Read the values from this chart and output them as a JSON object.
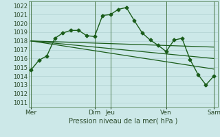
{
  "xlabel": "Pression niveau de la mer( hPa )",
  "bg_color": "#cce8e8",
  "grid_color": "#aacccc",
  "line_color": "#1a5c1a",
  "ylim": [
    1010.5,
    1022.5
  ],
  "yticks": [
    1011,
    1012,
    1013,
    1014,
    1015,
    1016,
    1017,
    1018,
    1019,
    1020,
    1021,
    1022
  ],
  "x_day_labels": [
    "Mer",
    "Dim",
    "Jeu",
    "Ven",
    "Sam"
  ],
  "x_day_positions": [
    0,
    8,
    10,
    17,
    23
  ],
  "xlim": [
    -0.3,
    23.5
  ],
  "main_series": {
    "x": [
      0,
      1,
      2,
      3,
      4,
      5,
      6,
      7,
      8,
      9,
      10,
      11,
      12,
      13,
      14,
      15,
      16,
      17,
      18,
      19,
      20,
      21,
      22,
      23
    ],
    "y": [
      1014.7,
      1015.8,
      1016.3,
      1018.3,
      1018.9,
      1019.2,
      1019.2,
      1018.6,
      1018.5,
      1020.9,
      1021.0,
      1021.6,
      1021.8,
      1020.3,
      1018.9,
      1018.1,
      1017.5,
      1016.8,
      1018.1,
      1018.3,
      1015.9,
      1014.2,
      1013.0,
      1014.0
    ],
    "marker": "D",
    "markersize": 2.5,
    "linewidth": 1.0
  },
  "trend_lines": [
    {
      "x": [
        0,
        23
      ],
      "y": [
        1018.0,
        1017.3
      ]
    },
    {
      "x": [
        0,
        23
      ],
      "y": [
        1018.0,
        1016.0
      ]
    },
    {
      "x": [
        0,
        23
      ],
      "y": [
        1018.0,
        1014.8
      ]
    }
  ],
  "vlines": [
    0,
    8,
    10,
    17,
    23
  ],
  "vline_color": "#4a7a4a"
}
